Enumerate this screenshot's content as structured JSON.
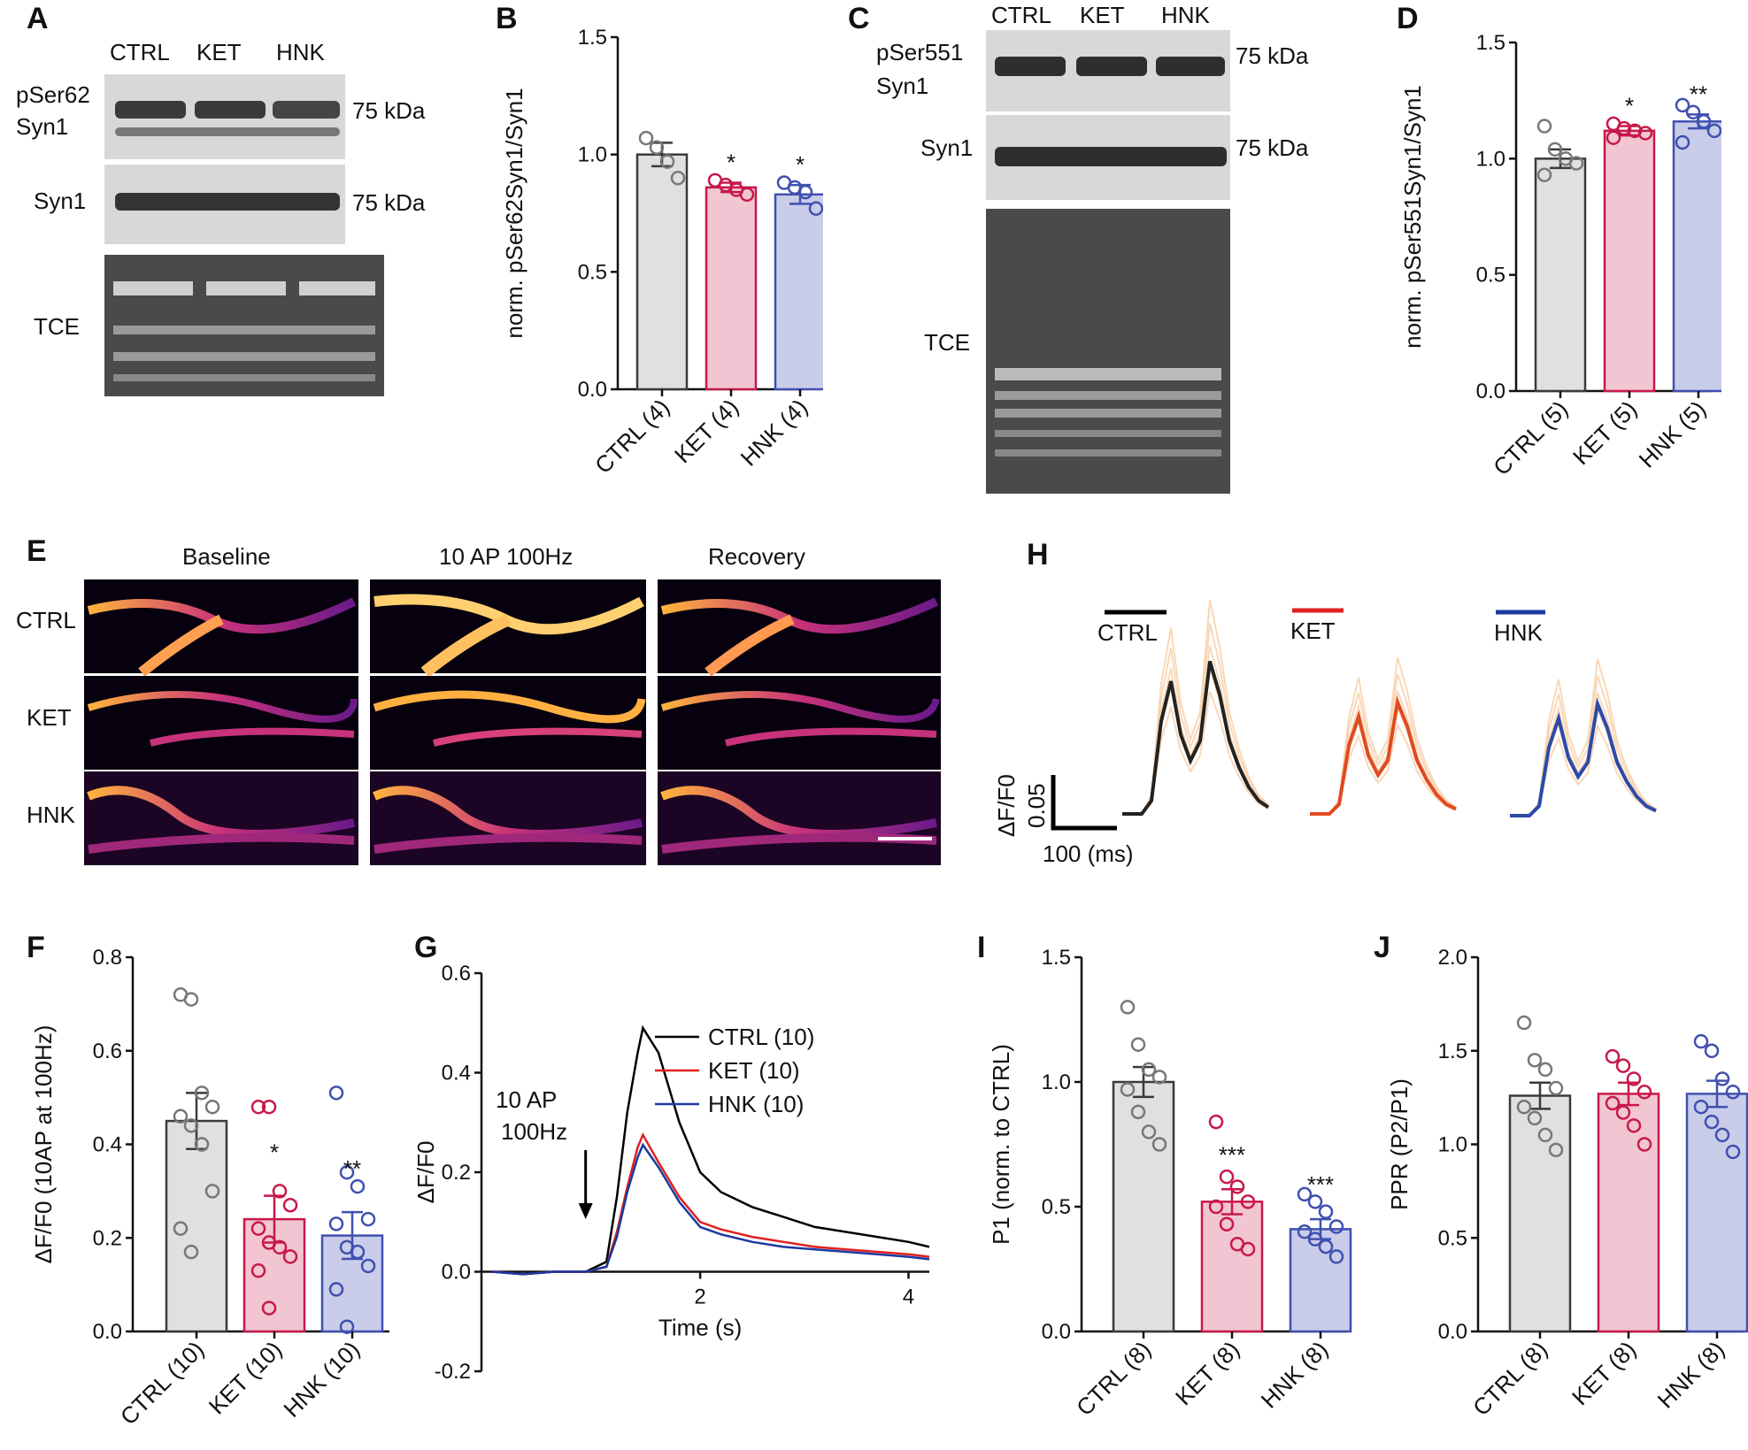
{
  "colors": {
    "ctrl_bar": "#e0e0e0",
    "ket_bar": "#f1c6d2",
    "hnk_bar": "#c9cde9",
    "ctrl_edge": "#3a3a3a",
    "ket_edge": "#c8184a",
    "hnk_edge": "#4050b0",
    "ctrl_pt": "#777777",
    "ket_pt": "#c8184a",
    "hnk_pt": "#4050b0",
    "trace_bg": "#f6c89a"
  },
  "panelA": {
    "letter": "A",
    "lanes": [
      "CTRL",
      "KET",
      "HNK"
    ],
    "row1_label_1": "pSer62",
    "row1_label_2": "Syn1",
    "row2_label": "Syn1",
    "row3_label": "TCE",
    "marker1": "75 kDa",
    "marker2": "75 kDa"
  },
  "panelC": {
    "letter": "C",
    "lanes": [
      "CTRL",
      "KET",
      "HNK"
    ],
    "row1_label_1": "pSer551",
    "row1_label_2": "Syn1",
    "row2_label": "Syn1",
    "row3_label": "TCE",
    "marker1": "75 kDa",
    "marker2": "75 kDa"
  },
  "panelE": {
    "letter": "E",
    "columns": [
      "Baseline",
      "10 AP 100Hz",
      "Recovery"
    ],
    "rows": [
      "CTRL",
      "KET",
      "HNK"
    ]
  },
  "panelH": {
    "letter": "H",
    "legend": [
      "CTRL",
      "KET",
      "HNK"
    ],
    "scale_y": "ΔF/F0",
    "scale_y_val": "0.05",
    "scale_x": "100 (ms)"
  },
  "panelB": {
    "letter": "B"
  },
  "panelD": {
    "letter": "D"
  },
  "panelF": {
    "letter": "F"
  },
  "panelG": {
    "letter": "G"
  },
  "panelI": {
    "letter": "I"
  },
  "panelJ": {
    "letter": "J"
  },
  "chart_data": [
    {
      "id": "B",
      "type": "bar",
      "ylabel": "norm. pSer62Syn1/Syn1",
      "ylim": [
        0,
        1.5
      ],
      "yticks": [
        "0.0",
        "0.5",
        "1.0",
        "1.5"
      ],
      "categories": [
        "CTRL (4)",
        "KET (4)",
        "HNK (4)"
      ],
      "values": [
        1.0,
        0.86,
        0.83
      ],
      "sem": [
        0.05,
        0.02,
        0.04
      ],
      "stars": [
        "",
        "*",
        "*"
      ],
      "points": [
        [
          1.07,
          1.03,
          0.97,
          0.9
        ],
        [
          0.89,
          0.87,
          0.85,
          0.83
        ],
        [
          0.88,
          0.86,
          0.84,
          0.77
        ]
      ]
    },
    {
      "id": "D",
      "type": "bar",
      "ylabel": "norm. pSer551Syn1/Syn1",
      "ylim": [
        0,
        1.5
      ],
      "yticks": [
        "0.0",
        "0.5",
        "1.0",
        "1.5"
      ],
      "categories": [
        "CTRL (5)",
        "KET (5)",
        "HNK (5)"
      ],
      "values": [
        1.0,
        1.12,
        1.16
      ],
      "sem": [
        0.04,
        0.02,
        0.03
      ],
      "stars": [
        "",
        "*",
        "**"
      ],
      "points": [
        [
          1.14,
          1.04,
          1.0,
          0.98,
          0.93
        ],
        [
          1.15,
          1.13,
          1.12,
          1.11,
          1.09
        ],
        [
          1.23,
          1.2,
          1.16,
          1.12,
          1.07
        ]
      ]
    },
    {
      "id": "F",
      "type": "bar",
      "ylabel": "ΔF/F0 (10AP at 100Hz)",
      "ylim": [
        0,
        0.8
      ],
      "yticks": [
        "0.0",
        "0.2",
        "0.4",
        "0.6",
        "0.8"
      ],
      "categories": [
        "CTRL (10)",
        "KET (10)",
        "HNK (10)"
      ],
      "values": [
        0.45,
        0.24,
        0.205
      ],
      "sem": [
        0.06,
        0.05,
        0.05
      ],
      "stars": [
        "",
        "*",
        "**"
      ],
      "points": [
        [
          0.72,
          0.71,
          0.51,
          0.48,
          0.46,
          0.44,
          0.4,
          0.3,
          0.22,
          0.17
        ],
        [
          0.48,
          0.48,
          0.3,
          0.27,
          0.22,
          0.19,
          0.18,
          0.16,
          0.13,
          0.05
        ],
        [
          0.51,
          0.34,
          0.31,
          0.24,
          0.23,
          0.18,
          0.17,
          0.14,
          0.09,
          0.01
        ]
      ]
    },
    {
      "id": "G",
      "type": "line",
      "xlabel": "Time (s)",
      "ylabel": "ΔF/F0",
      "xlim": [
        -0.1,
        4.2
      ],
      "ylim": [
        -0.2,
        0.6
      ],
      "xticks": [
        "2",
        "4"
      ],
      "yticks": [
        "-0.2",
        "0.0",
        "0.2",
        "0.4",
        "0.6"
      ],
      "annotation": [
        "10 AP",
        "100Hz"
      ],
      "x": [
        0,
        0.3,
        0.6,
        0.9,
        1.1,
        1.2,
        1.3,
        1.4,
        1.45,
        1.6,
        1.8,
        2.0,
        2.2,
        2.5,
        2.8,
        3.1,
        3.4,
        3.7,
        4.0,
        4.2
      ],
      "series": [
        {
          "name": "CTRL (10)",
          "values": [
            0,
            -0.005,
            0.0,
            0.0,
            0.02,
            0.15,
            0.32,
            0.44,
            0.49,
            0.44,
            0.3,
            0.2,
            0.16,
            0.13,
            0.11,
            0.09,
            0.08,
            0.07,
            0.06,
            0.05
          ]
        },
        {
          "name": "KET (10)",
          "values": [
            0,
            -0.005,
            0.0,
            0.0,
            0.01,
            0.08,
            0.17,
            0.25,
            0.275,
            0.22,
            0.15,
            0.1,
            0.085,
            0.07,
            0.06,
            0.05,
            0.045,
            0.04,
            0.035,
            0.03
          ]
        },
        {
          "name": "HNK (10)",
          "values": [
            0,
            -0.005,
            0.0,
            0.0,
            0.01,
            0.07,
            0.16,
            0.23,
            0.255,
            0.21,
            0.14,
            0.09,
            0.075,
            0.06,
            0.05,
            0.045,
            0.04,
            0.035,
            0.03,
            0.025
          ]
        }
      ]
    },
    {
      "id": "I",
      "type": "bar",
      "ylabel": "P1 (norm. to CTRL)",
      "ylim": [
        0,
        1.5
      ],
      "yticks": [
        "0.0",
        "0.5",
        "1.0",
        "1.5"
      ],
      "categories": [
        "CTRL (8)",
        "KET (8)",
        "HNK (8)"
      ],
      "values": [
        1.0,
        0.52,
        0.41
      ],
      "sem": [
        0.06,
        0.05,
        0.04
      ],
      "stars": [
        "",
        "***",
        "***"
      ],
      "points": [
        [
          1.3,
          1.15,
          1.05,
          1.02,
          0.97,
          0.88,
          0.8,
          0.75
        ],
        [
          0.84,
          0.62,
          0.58,
          0.52,
          0.5,
          0.43,
          0.35,
          0.33
        ],
        [
          0.55,
          0.52,
          0.48,
          0.42,
          0.4,
          0.37,
          0.34,
          0.3
        ]
      ]
    },
    {
      "id": "J",
      "type": "bar",
      "ylabel": "PPR (P2/P1)",
      "ylim": [
        0,
        2.0
      ],
      "yticks": [
        "0.0",
        "0.5",
        "1.0",
        "1.5",
        "2.0"
      ],
      "categories": [
        "CTRL (8)",
        "KET (8)",
        "HNK (8)"
      ],
      "values": [
        1.26,
        1.27,
        1.27
      ],
      "sem": [
        0.07,
        0.06,
        0.07
      ],
      "stars": [
        "",
        "",
        ""
      ],
      "points": [
        [
          1.65,
          1.45,
          1.4,
          1.3,
          1.2,
          1.14,
          1.05,
          0.97
        ],
        [
          1.47,
          1.42,
          1.35,
          1.28,
          1.22,
          1.17,
          1.1,
          1.0
        ],
        [
          1.55,
          1.5,
          1.35,
          1.28,
          1.2,
          1.12,
          1.05,
          0.96
        ]
      ]
    }
  ]
}
